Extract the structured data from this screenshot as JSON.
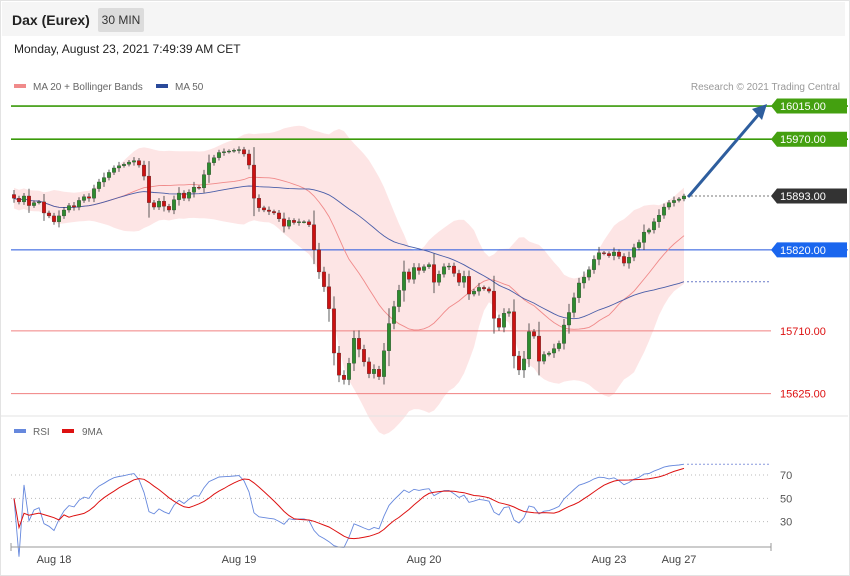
{
  "header": {
    "title": "Dax (Eurex)",
    "timeframe": "30 MIN",
    "datetime": "Monday, August 23, 2021 7:49:39 AM CET"
  },
  "legend": {
    "ma20": "MA 20 + Bollinger Bands",
    "ma50": "MA 50",
    "copyright": "Research © 2021 Trading Central",
    "rsi": "RSI",
    "rsi_ma": "9MA"
  },
  "colors": {
    "bull": "#2e8b2e",
    "bear": "#cc1111",
    "band": "#fde0e0",
    "ma20": "#f08a8a",
    "ma50": "#4a5ea8",
    "resistance": "#3a9a0a",
    "pivot": "#2255dd",
    "support": "#f08080",
    "current": "#333333",
    "rsi": "#6688dd",
    "rsi_ma": "#dd1111",
    "arrow": "#2e5e9e"
  },
  "chart_data": [
    {
      "type": "candlestick",
      "yrange": [
        15600,
        16030
      ],
      "levels": [
        {
          "value": 16015.0,
          "label": "16015.00",
          "kind": "resistance"
        },
        {
          "value": 15970.0,
          "label": "15970.00",
          "kind": "resistance"
        },
        {
          "value": 15893.0,
          "label": "15893.00",
          "kind": "current"
        },
        {
          "value": 15820.0,
          "label": "15820.00",
          "kind": "pivot"
        },
        {
          "value": 15710.0,
          "label": "15710.00",
          "kind": "support"
        },
        {
          "value": 15625.0,
          "label": "15625.00",
          "kind": "support"
        }
      ],
      "forecast": {
        "from": 15893,
        "to": 16015
      },
      "close": [
        15890,
        15885,
        15893,
        15880,
        15884,
        15885,
        15870,
        15866,
        15858,
        15866,
        15874,
        15880,
        15878,
        15887,
        15892,
        15890,
        15903,
        15912,
        15918,
        15925,
        15931,
        15934,
        15936,
        15939,
        15941,
        15935,
        15920,
        15884,
        15878,
        15886,
        15879,
        15874,
        15888,
        15897,
        15890,
        15898,
        15905,
        15904,
        15922,
        15938,
        15945,
        15952,
        15953,
        15954,
        15955,
        15956,
        15950,
        15935,
        15890,
        15877,
        15874,
        15872,
        15870,
        15862,
        15852,
        15860,
        15857,
        15858,
        15858,
        15854,
        15820,
        15790,
        15770,
        15740,
        15680,
        15650,
        15644,
        15666,
        15700,
        15685,
        15668,
        15652,
        15658,
        15648,
        15683,
        15720,
        15743,
        15765,
        15790,
        15780,
        15796,
        15792,
        15797,
        15800,
        15776,
        15787,
        15797,
        15798,
        15788,
        15776,
        15784,
        15760,
        15764,
        15769,
        15767,
        15764,
        15727,
        15715,
        15734,
        15736,
        15676,
        15657,
        15672,
        15709,
        15703,
        15669,
        15678,
        15680,
        15686,
        15693,
        15718,
        15735,
        15755,
        15775,
        15783,
        15793,
        15807,
        15816,
        15815,
        15812,
        15817,
        15811,
        15802,
        15810,
        15823,
        15830,
        15844,
        15847,
        15858,
        15867,
        15878,
        15884,
        15887,
        15889,
        15893
      ],
      "rsi_range": [
        10,
        100
      ],
      "rsi_ticks": [
        70,
        50,
        30
      ],
      "x_ticks": [
        {
          "label": "Aug 18",
          "index": 8
        },
        {
          "label": "Aug 19",
          "index": 45
        },
        {
          "label": "Aug 20",
          "index": 82
        },
        {
          "label": "Aug 23",
          "index": 119
        },
        {
          "label": "Aug 27",
          "index": 133
        }
      ]
    }
  ]
}
